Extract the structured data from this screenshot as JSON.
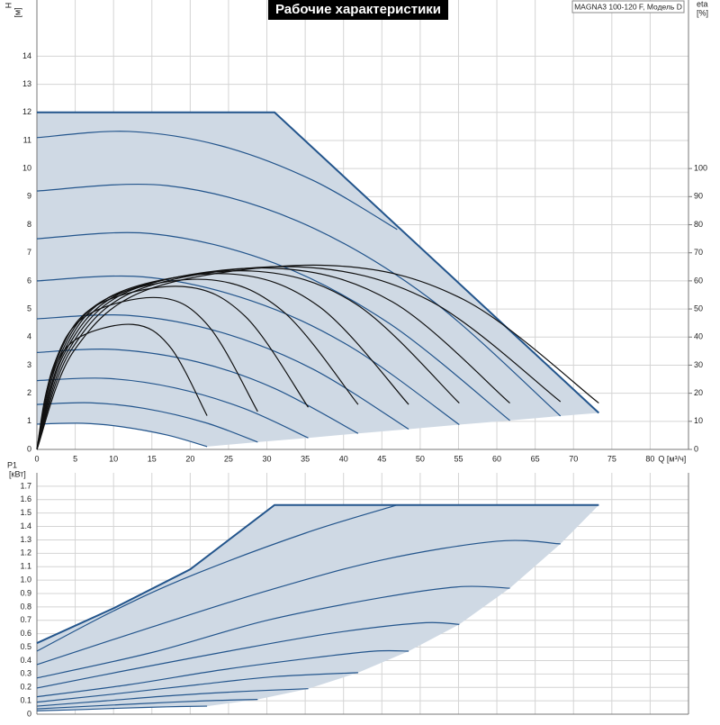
{
  "chart_data": [
    {
      "type": "line",
      "title": "Рабочие характеристики",
      "subtitle": "MAGNA3 100-120 F, Модель D",
      "xlabel": "Q [м³/ч]",
      "ylabel": "H",
      "yunit": "[м]",
      "y2label": "eta",
      "y2unit": "[%]",
      "xlim": [
        0,
        85
      ],
      "xticks": [
        0,
        5,
        10,
        15,
        20,
        25,
        30,
        35,
        40,
        45,
        50,
        55,
        60,
        65,
        70,
        75,
        80
      ],
      "ylim": [
        0,
        16
      ],
      "yticks": [
        0,
        1,
        2,
        3,
        4,
        5,
        6,
        7,
        8,
        9,
        10,
        11,
        12,
        13,
        14
      ],
      "y2lim": [
        0,
        160
      ],
      "y2ticks": [
        0,
        10,
        20,
        30,
        40,
        50,
        60,
        70,
        80,
        90,
        100
      ],
      "grid": true,
      "fill_color": "#cfd9e4",
      "series": [
        {
          "color": "#23558c",
          "x": [
            0,
            31,
            73.3
          ],
          "values": [
            12,
            12,
            1.3
          ]
        },
        {
          "color": "#23558c",
          "x": [
            0,
            12,
            24,
            36,
            47
          ],
          "values": [
            11.1,
            11.32,
            10.81,
            9.58,
            7.83
          ]
        },
        {
          "color": "#23558c",
          "x": [
            0,
            17,
            34,
            51,
            68.3
          ],
          "values": [
            9.2,
            9.39,
            8.13,
            5.42,
            1.19
          ]
        },
        {
          "color": "#23558c",
          "x": [
            0,
            15,
            31,
            46,
            61.7
          ],
          "values": [
            7.5,
            7.68,
            6.63,
            4.48,
            1.03
          ]
        },
        {
          "color": "#23558c",
          "x": [
            0,
            14,
            28,
            41,
            55.1
          ],
          "values": [
            6.0,
            6.14,
            5.29,
            3.64,
            0.88
          ]
        },
        {
          "color": "#23558c",
          "x": [
            0,
            12,
            24,
            36,
            48.5
          ],
          "values": [
            4.65,
            4.77,
            4.17,
            2.86,
            0.72
          ]
        },
        {
          "color": "#23558c",
          "x": [
            0,
            10,
            21,
            31,
            41.9
          ],
          "values": [
            3.45,
            3.56,
            3.11,
            2.17,
            0.57
          ]
        },
        {
          "color": "#23558c",
          "x": [
            0,
            9,
            18,
            27,
            35.4
          ],
          "values": [
            2.45,
            2.53,
            2.19,
            1.46,
            0.41
          ]
        },
        {
          "color": "#23558c",
          "x": [
            0,
            7,
            14,
            22,
            28.8
          ],
          "values": [
            1.6,
            1.66,
            1.46,
            0.95,
            0.26
          ]
        },
        {
          "color": "#23558c",
          "x": [
            0,
            6,
            11,
            17,
            22.2
          ],
          "values": [
            0.9,
            0.93,
            0.81,
            0.51,
            0.1
          ]
        },
        {
          "color": "#111111",
          "axis": "y2",
          "x": [
            0,
            1.6,
            5,
            12.5,
            17.4,
            22.2
          ],
          "values": [
            0,
            24,
            39,
            44.5,
            36.4,
            12
          ]
        },
        {
          "color": "#111111",
          "axis": "y2",
          "x": [
            0,
            2.1,
            6.4,
            16,
            22.4,
            28.8
          ],
          "values": [
            0,
            29.2,
            47.5,
            54,
            43.9,
            13.5
          ]
        },
        {
          "color": "#111111",
          "axis": "y2",
          "x": [
            0,
            2.5,
            7.6,
            19,
            27.2,
            35.4
          ],
          "values": [
            0,
            31.3,
            51,
            58,
            47.3,
            15
          ]
        },
        {
          "color": "#111111",
          "axis": "y2",
          "x": [
            0,
            2.9,
            8.8,
            22,
            32,
            41.9
          ],
          "values": [
            0,
            32.7,
            53.2,
            60.5,
            49.4,
            16
          ]
        },
        {
          "color": "#111111",
          "axis": "y2",
          "x": [
            0,
            3.3,
            10,
            25,
            36.8,
            48.5
          ],
          "values": [
            0,
            33.8,
            55,
            62.5,
            50.9,
            16
          ]
        },
        {
          "color": "#111111",
          "axis": "y2",
          "x": [
            0,
            3.6,
            11.2,
            28,
            41.6,
            55.1
          ],
          "values": [
            0,
            34.3,
            55.9,
            63.5,
            51.8,
            16.5
          ]
        },
        {
          "color": "#111111",
          "axis": "y2",
          "x": [
            0,
            4,
            12.4,
            31,
            46.4,
            61.7
          ],
          "values": [
            0,
            34.8,
            56.8,
            64.5,
            52.5,
            16.5
          ]
        },
        {
          "color": "#111111",
          "axis": "y2",
          "x": [
            0,
            4.4,
            13.6,
            34,
            51.2,
            68.3
          ],
          "values": [
            0,
            35.1,
            57.2,
            65,
            53,
            17
          ]
        },
        {
          "color": "#111111",
          "axis": "y2",
          "x": [
            0,
            4.9,
            15.2,
            38,
            55.7,
            73.3
          ],
          "values": [
            0,
            35.4,
            57.6,
            65.5,
            53.3,
            16.5
          ]
        }
      ]
    },
    {
      "type": "line",
      "ylabel": "P1",
      "yunit": "[кВт]",
      "xlim": [
        0,
        85
      ],
      "xticks": [
        0,
        5,
        10,
        15,
        20,
        25,
        30,
        35,
        40,
        45,
        50,
        55,
        60,
        65,
        70,
        75,
        80
      ],
      "show_xtick_labels": false,
      "ylim": [
        0,
        1.8
      ],
      "yticks": [
        0,
        0.1,
        0.2,
        0.3,
        0.4,
        0.5,
        0.6,
        0.7,
        0.8,
        0.9,
        {
          "value": 1,
          "label": "1.0"
        },
        1.1,
        1.2,
        1.3,
        1.4,
        1.5,
        1.6,
        1.7
      ],
      "grid": true,
      "fill_color": "#cfd9e4",
      "series": [
        {
          "color": "#23558c",
          "x": [
            0,
            10,
            20,
            31,
            73.3
          ],
          "values": [
            0.53,
            0.79,
            1.08,
            1.56,
            1.56
          ]
        },
        {
          "color": "#23558c",
          "x": [
            0,
            10,
            20,
            35,
            47
          ],
          "values": [
            0.47,
            0.77,
            1.03,
            1.35,
            1.56
          ]
        },
        {
          "color": "#23558c",
          "x": [
            0,
            15,
            30,
            45,
            60,
            68.3
          ],
          "values": [
            0.37,
            0.65,
            0.92,
            1.15,
            1.29,
            1.27
          ]
        },
        {
          "color": "#23558c",
          "x": [
            0,
            15,
            30,
            45,
            55,
            61.7
          ],
          "values": [
            0.27,
            0.46,
            0.7,
            0.87,
            0.95,
            0.94
          ]
        },
        {
          "color": "#23558c",
          "x": [
            0,
            12,
            25,
            38,
            50,
            55.1
          ],
          "values": [
            0.195,
            0.33,
            0.47,
            0.6,
            0.68,
            0.67
          ]
        },
        {
          "color": "#23558c",
          "x": [
            0,
            12,
            24,
            36,
            44,
            48.5
          ],
          "values": [
            0.13,
            0.22,
            0.33,
            0.42,
            0.47,
            0.47
          ]
        },
        {
          "color": "#23558c",
          "x": [
            0,
            10,
            21,
            31,
            41.9
          ],
          "values": [
            0.09,
            0.15,
            0.22,
            0.28,
            0.31
          ]
        },
        {
          "color": "#23558c",
          "x": [
            0,
            9,
            18,
            27,
            35.4
          ],
          "values": [
            0.06,
            0.1,
            0.14,
            0.17,
            0.19
          ]
        },
        {
          "color": "#23558c",
          "x": [
            0,
            7,
            14,
            22,
            28.8
          ],
          "values": [
            0.04,
            0.06,
            0.08,
            0.1,
            0.11
          ]
        },
        {
          "color": "#23558c",
          "x": [
            0,
            6,
            11,
            17,
            22.2
          ],
          "values": [
            0.025,
            0.035,
            0.045,
            0.055,
            0.06
          ]
        }
      ]
    }
  ]
}
